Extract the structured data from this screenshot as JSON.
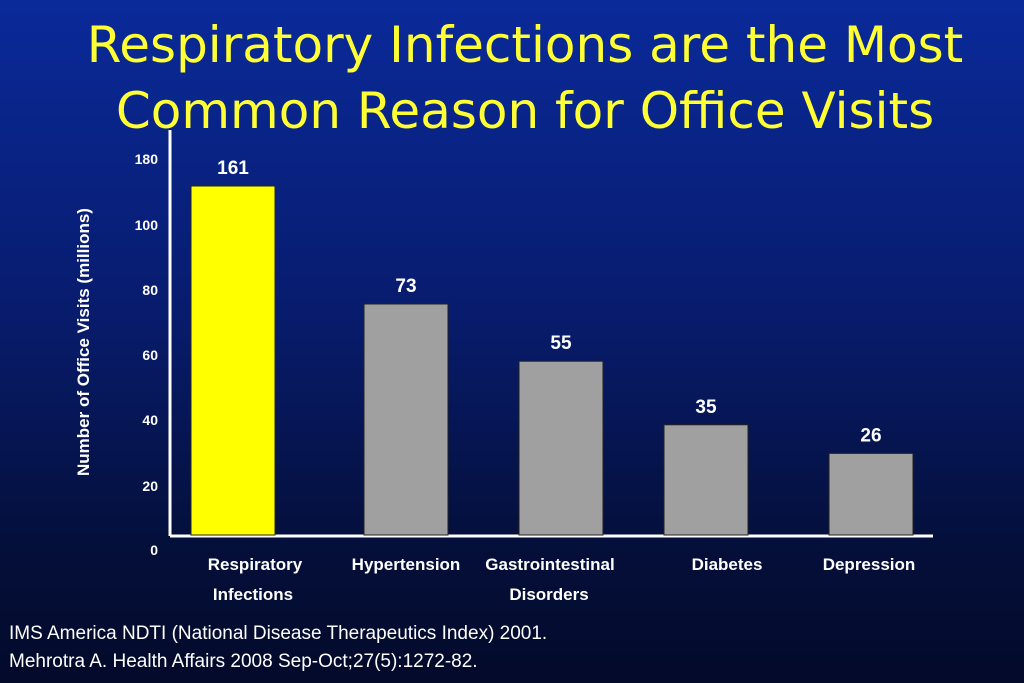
{
  "title_lines": [
    "Respiratory Infections are the Most",
    "Common Reason for Office Visits"
  ],
  "footnotes": [
    "IMS America NDTI (National Disease Therapeutics Index) 2001.",
    "Mehrotra A. Health Affairs 2008 Sep-Oct;27(5):1272-82."
  ],
  "colors": {
    "highlight": "#ffff00",
    "bar": "#a0a0a0",
    "title": "#ffff33",
    "text": "#ffffff"
  },
  "chart_data": {
    "type": "bar",
    "title": "",
    "xlabel": "",
    "ylabel": "Number of Office Visits (millions)",
    "categories": [
      [
        "Respiratory",
        "Infections"
      ],
      [
        "Hypertension"
      ],
      [
        "Gastrointestinal",
        "Disorders"
      ],
      [
        "Diabetes"
      ],
      [
        "Depression"
      ]
    ],
    "values": [
      161,
      73,
      55,
      35,
      26
    ],
    "highlight_index": 0,
    "y_ticks": [
      "0",
      "20",
      "40",
      "60",
      "80",
      "100",
      "180"
    ],
    "axis_break": true,
    "grid": false,
    "legend": "none"
  }
}
